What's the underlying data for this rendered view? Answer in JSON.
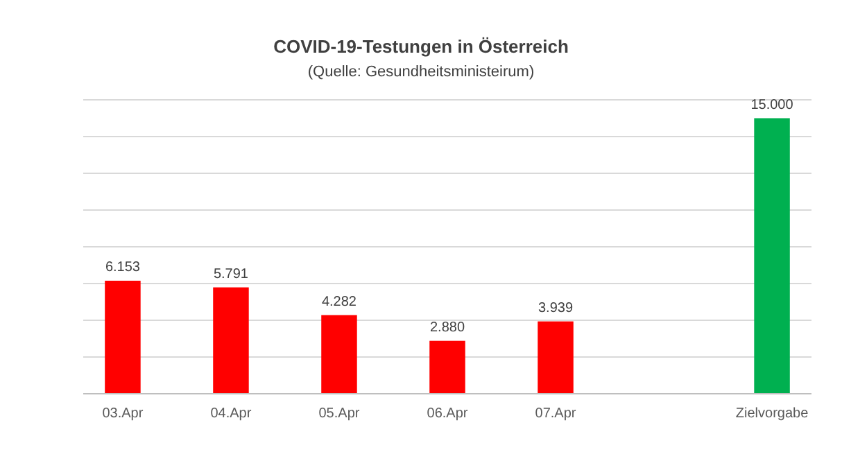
{
  "chart_data": {
    "type": "bar",
    "title": "COVID-19-Testungen in Österreich",
    "subtitle": "(Quelle: Gesundheitsministeirum)",
    "categories": [
      "03.Apr",
      "04.Apr",
      "05.Apr",
      "06.Apr",
      "07.Apr",
      null,
      "Zielvorgabe"
    ],
    "values": [
      6153,
      5791,
      4282,
      2880,
      3939,
      null,
      15000
    ],
    "colors": [
      "#ff0000",
      "#ff0000",
      "#ff0000",
      "#ff0000",
      "#ff0000",
      null,
      "#00b050"
    ],
    "value_labels": [
      "6.153",
      "5.791",
      "4.282",
      "2.880",
      "3.939",
      null,
      "15.000"
    ],
    "ylim": [
      0,
      16000
    ],
    "yticks": [
      {
        "value": 0,
        "label": null
      },
      {
        "value": 2000,
        "label": null
      },
      {
        "value": 4000,
        "label": null
      },
      {
        "value": 6000,
        "label": null
      },
      {
        "value": 8000,
        "label": null
      },
      {
        "value": 10000,
        "label": null
      },
      {
        "value": 12000,
        "label": null
      },
      {
        "value": 14000,
        "label": null
      },
      {
        "value": 16000,
        "label": null
      }
    ],
    "grid": "y",
    "tick_labels": "x"
  }
}
